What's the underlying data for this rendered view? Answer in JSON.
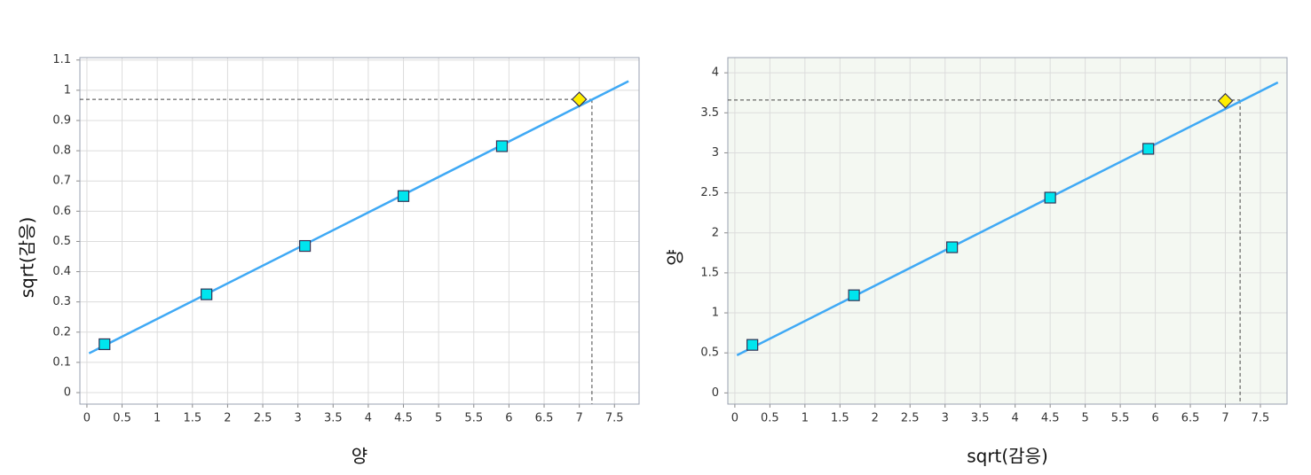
{
  "chart_data": [
    {
      "type": "scatter",
      "x_label": "양",
      "y_label": "sqrt(감응)",
      "xlim": [
        -0.1,
        7.85
      ],
      "ylim": [
        -0.038,
        1.108
      ],
      "xticks": [
        0,
        0.5,
        1,
        1.5,
        2,
        2.5,
        3,
        3.5,
        4,
        4.5,
        5,
        5.5,
        6,
        6.5,
        7,
        7.5
      ],
      "yticks": [
        0,
        0.1,
        0.2,
        0.3,
        0.4,
        0.5,
        0.6,
        0.7,
        0.8,
        0.9,
        1,
        1.1
      ],
      "grid": true,
      "background": "#ffffff",
      "series": [
        {
          "color": "#00e5ee",
          "marker": "square",
          "x": [
            0.25,
            1.7,
            3.1,
            4.5,
            5.9
          ],
          "values": [
            0.16,
            0.325,
            0.485,
            0.65,
            0.815
          ]
        },
        {
          "color": "#ffee00",
          "marker": "diamond",
          "x": [
            7.0
          ],
          "values": [
            0.97
          ]
        }
      ],
      "fit_line": {
        "color": "#3fa9f5",
        "x": [
          0.03,
          7.7
        ],
        "values": [
          0.13,
          1.03
        ]
      },
      "reference": {
        "x": 7.18,
        "y": 0.97
      }
    },
    {
      "type": "scatter",
      "x_label": "sqrt(감응)",
      "y_label": "양",
      "xlim": [
        -0.1,
        7.88
      ],
      "ylim": [
        -0.14,
        4.19
      ],
      "xticks": [
        0,
        0.5,
        1,
        1.5,
        2,
        2.5,
        3,
        3.5,
        4,
        4.5,
        5,
        5.5,
        6,
        6.5,
        7,
        7.5
      ],
      "yticks": [
        0,
        0.5,
        1,
        1.5,
        2,
        2.5,
        3,
        3.5,
        4
      ],
      "grid": true,
      "background": "#f4f8f2",
      "series": [
        {
          "color": "#00e5ee",
          "marker": "square",
          "x": [
            0.25,
            1.7,
            3.1,
            4.5,
            5.9
          ],
          "values": [
            0.6,
            1.22,
            1.82,
            2.44,
            3.05
          ]
        },
        {
          "color": "#ffee00",
          "marker": "diamond",
          "x": [
            7.0
          ],
          "values": [
            3.65
          ]
        }
      ],
      "fit_line": {
        "color": "#3fa9f5",
        "x": [
          0.03,
          7.75
        ],
        "values": [
          0.47,
          3.88
        ]
      },
      "reference": {
        "x": 7.21,
        "y": 3.66
      }
    }
  ]
}
